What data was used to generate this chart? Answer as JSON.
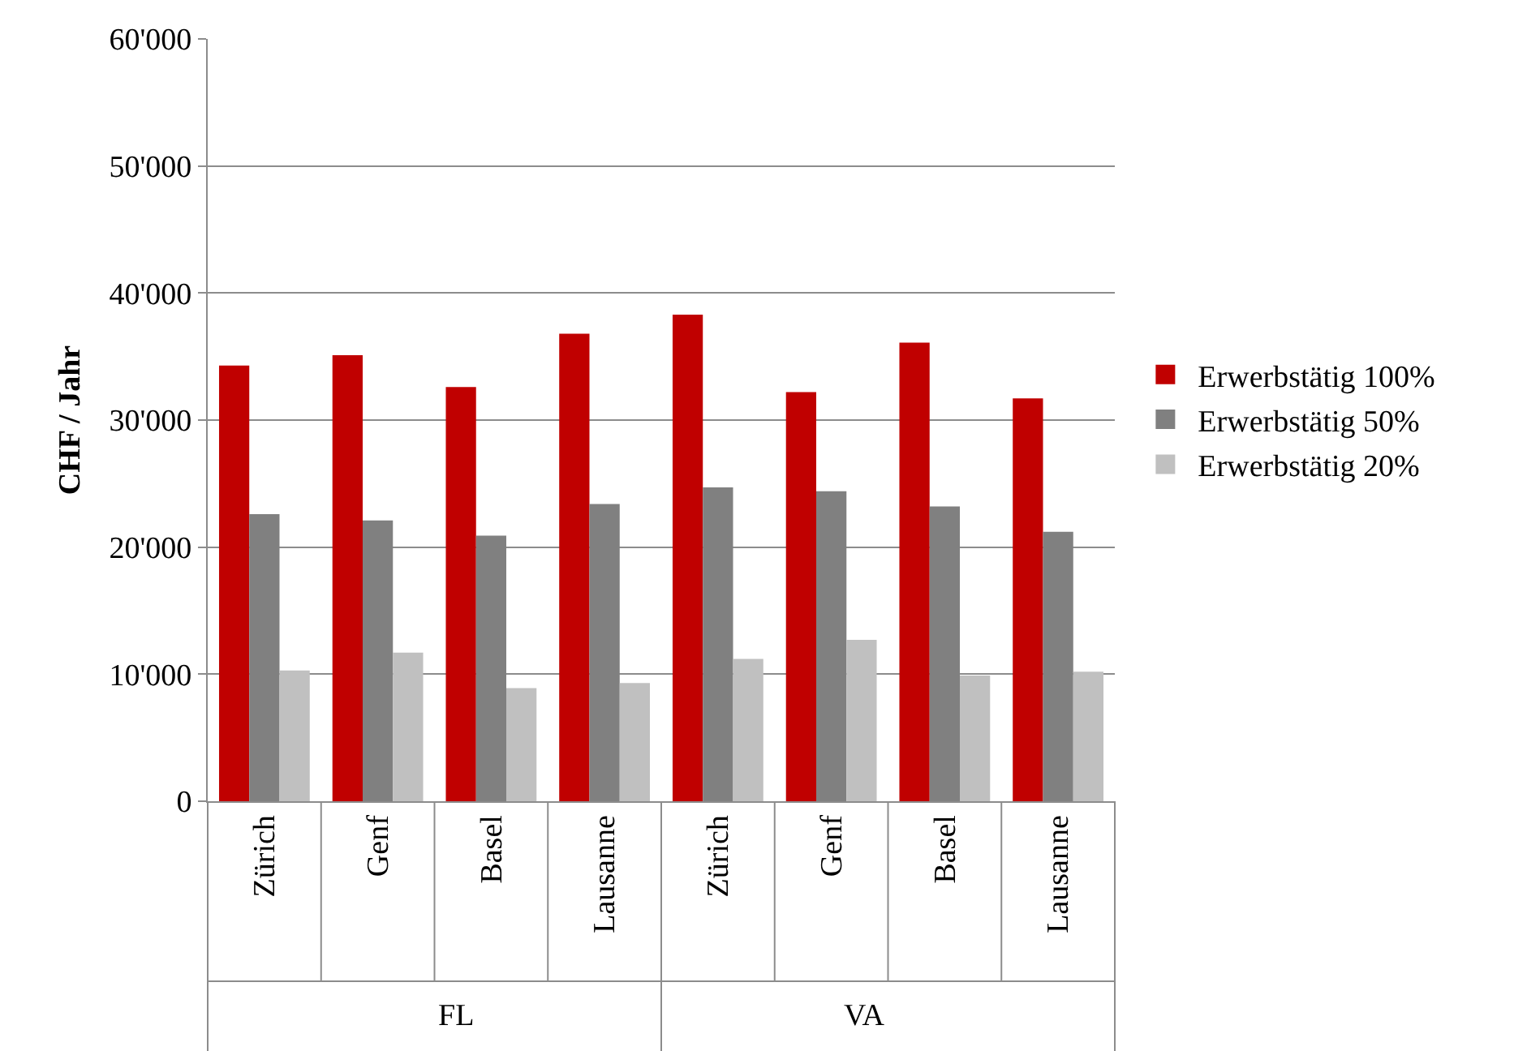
{
  "chart_data": {
    "type": "bar",
    "ylabel": "CHF / Jahr",
    "categories": [
      "Zürich",
      "Genf",
      "Basel",
      "Lausanne",
      "Zürich",
      "Genf",
      "Basel",
      "Lausanne"
    ],
    "annotations": [
      "FL",
      "VA"
    ],
    "series": [
      {
        "name": "Erwerbstätig 100%",
        "color": "#c00000",
        "values": [
          34300,
          35100,
          32600,
          36800,
          38300,
          32200,
          36100,
          31700
        ]
      },
      {
        "name": "Erwerbstätig 50%",
        "color": "#808080",
        "values": [
          22600,
          22100,
          20900,
          23400,
          24700,
          24400,
          23200,
          21200
        ]
      },
      {
        "name": "Erwerbstätig 20%",
        "color": "#c0c0c0",
        "values": [
          10300,
          11700,
          8900,
          9300,
          11200,
          12700,
          9900,
          10200
        ]
      }
    ],
    "ylim": [
      0,
      60000
    ],
    "yticks": [
      0,
      {
        "value": 10000,
        "label": "10'000"
      },
      {
        "value": 20000,
        "label": "20'000"
      },
      {
        "value": 30000,
        "label": "30'000"
      },
      {
        "value": 40000,
        "label": "40'000"
      },
      {
        "value": 50000,
        "label": "50'000"
      },
      {
        "value": 60000,
        "label": "60'000"
      }
    ],
    "grid": "y",
    "legend": "right"
  }
}
